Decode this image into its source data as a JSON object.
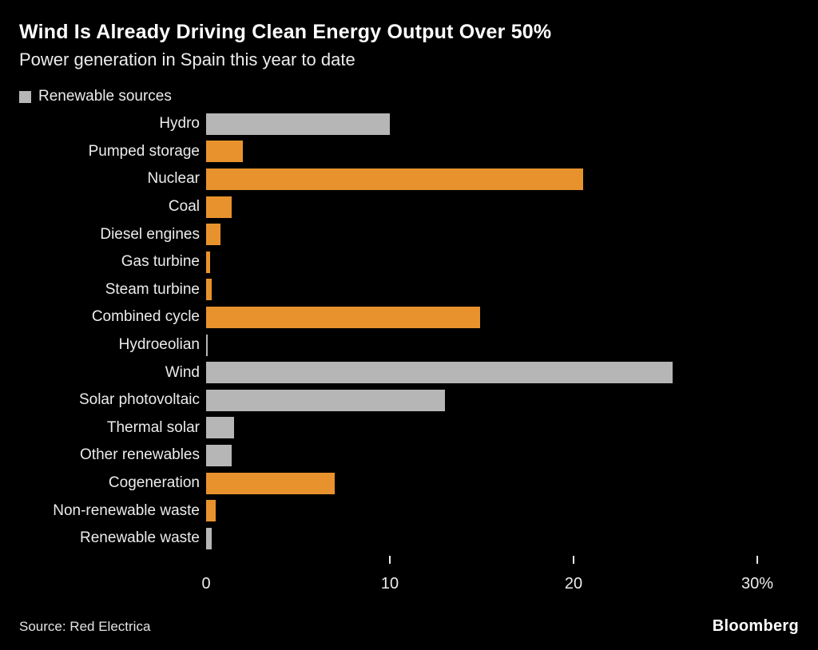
{
  "header": {
    "title": "Wind Is Already Driving Clean Energy Output Over 50%",
    "subtitle": "Power generation in Spain this year to date"
  },
  "legend": {
    "label": "Renewable sources",
    "swatch_color": "#b6b6b6"
  },
  "chart_data": {
    "type": "bar",
    "orientation": "horizontal",
    "title": "Wind Is Already Driving Clean Energy Output Over 50%",
    "subtitle": "Power generation in Spain this year to date",
    "xlabel": "",
    "ylabel": "",
    "xlim": [
      0,
      30
    ],
    "grid": false,
    "legend_position": "top-left",
    "colors": {
      "renewable": "#b6b6b6",
      "non_renewable": "#e8922d"
    },
    "x_ticks": [
      {
        "label": "0",
        "value": 0,
        "tick": false
      },
      {
        "label": "10",
        "value": 10,
        "tick": true
      },
      {
        "label": "20",
        "value": 20,
        "tick": true
      },
      {
        "label": "30%",
        "value": 30,
        "tick": true
      }
    ],
    "bars": [
      {
        "label": "Hydro",
        "value": 10.0,
        "renewable": true
      },
      {
        "label": "Pumped storage",
        "value": 2.0,
        "renewable": false
      },
      {
        "label": "Nuclear",
        "value": 20.5,
        "renewable": false
      },
      {
        "label": "Coal",
        "value": 1.4,
        "renewable": false
      },
      {
        "label": "Diesel engines",
        "value": 0.8,
        "renewable": false
      },
      {
        "label": "Gas turbine",
        "value": 0.2,
        "renewable": false
      },
      {
        "label": "Steam turbine",
        "value": 0.3,
        "renewable": false
      },
      {
        "label": "Combined cycle",
        "value": 14.9,
        "renewable": false
      },
      {
        "label": "Hydroeolian",
        "value": 0.1,
        "renewable": true
      },
      {
        "label": "Wind",
        "value": 25.4,
        "renewable": true
      },
      {
        "label": "Solar photovoltaic",
        "value": 13.0,
        "renewable": true
      },
      {
        "label": "Thermal solar",
        "value": 1.5,
        "renewable": true
      },
      {
        "label": "Other renewables",
        "value": 1.4,
        "renewable": true
      },
      {
        "label": "Cogeneration",
        "value": 7.0,
        "renewable": false
      },
      {
        "label": "Non-renewable waste",
        "value": 0.5,
        "renewable": false
      },
      {
        "label": "Renewable waste",
        "value": 0.3,
        "renewable": true
      }
    ]
  },
  "footer": {
    "source": "Source: Red Electrica",
    "brand": "Bloomberg"
  }
}
